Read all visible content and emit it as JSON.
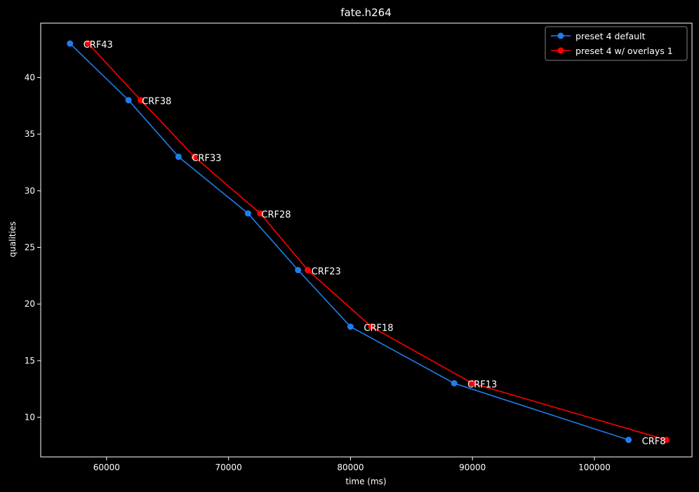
{
  "chart_data": {
    "type": "line",
    "title": "fate.h264",
    "xlabel": "time (ms)",
    "ylabel": "qualities",
    "xlim": [
      54600,
      108000
    ],
    "ylim": [
      6.5,
      44.8
    ],
    "xticks": [
      60000,
      70000,
      80000,
      90000,
      100000
    ],
    "yticks": [
      10,
      15,
      20,
      25,
      30,
      35,
      40
    ],
    "grid": false,
    "legend_position": "top-right",
    "background": "#000000",
    "series": [
      {
        "name": "preset 4 default",
        "color": "#1f7ded",
        "x": [
          57000,
          61800,
          65900,
          71600,
          75700,
          80000,
          88500,
          102800
        ],
        "y": [
          43,
          38,
          33,
          28,
          23,
          18,
          13,
          8
        ],
        "labels": [
          "CRF43",
          "CRF38",
          "CRF33",
          "CRF28",
          "CRF23",
          "CRF18",
          "CRF13",
          "CRF8"
        ]
      },
      {
        "name": "preset 4 w/ overlays 1",
        "color": "#ff0000",
        "x": [
          58500,
          62800,
          67200,
          72600,
          76500,
          81700,
          90000,
          105900
        ],
        "y": [
          43,
          38,
          33,
          28,
          23,
          18,
          13,
          8
        ]
      }
    ]
  }
}
